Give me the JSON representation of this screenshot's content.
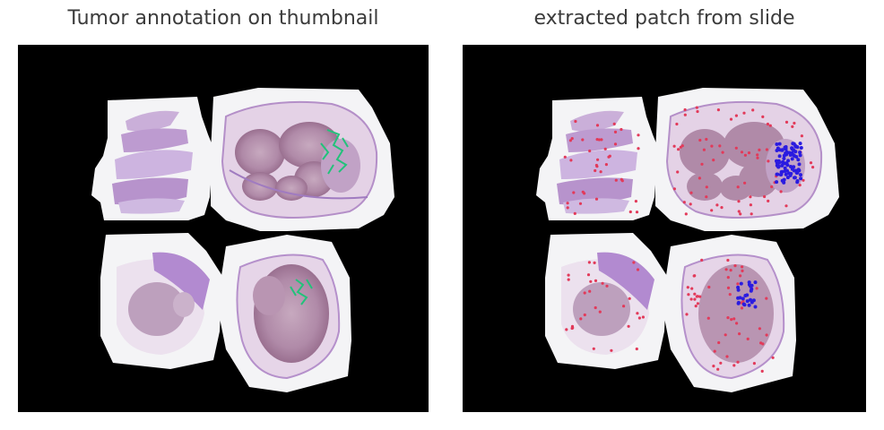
{
  "panels": [
    {
      "title": "Tumor annotation on thumbnail",
      "overlay": "tumor-annotation",
      "marker_color": "#22c27a"
    },
    {
      "title": "extracted patch from slide",
      "overlay": "extracted-patches",
      "marker_colors": [
        "#e23a5a",
        "#2a1be0"
      ]
    }
  ],
  "colors": {
    "background": "#000000",
    "mask": "#f4f4f6",
    "tissue_light": "#c9a9d6",
    "tissue_dark": "#8c5f9a",
    "tumor_green": "#22c27a",
    "patch_red": "#e23a5a",
    "patch_blue": "#2a1be0"
  }
}
